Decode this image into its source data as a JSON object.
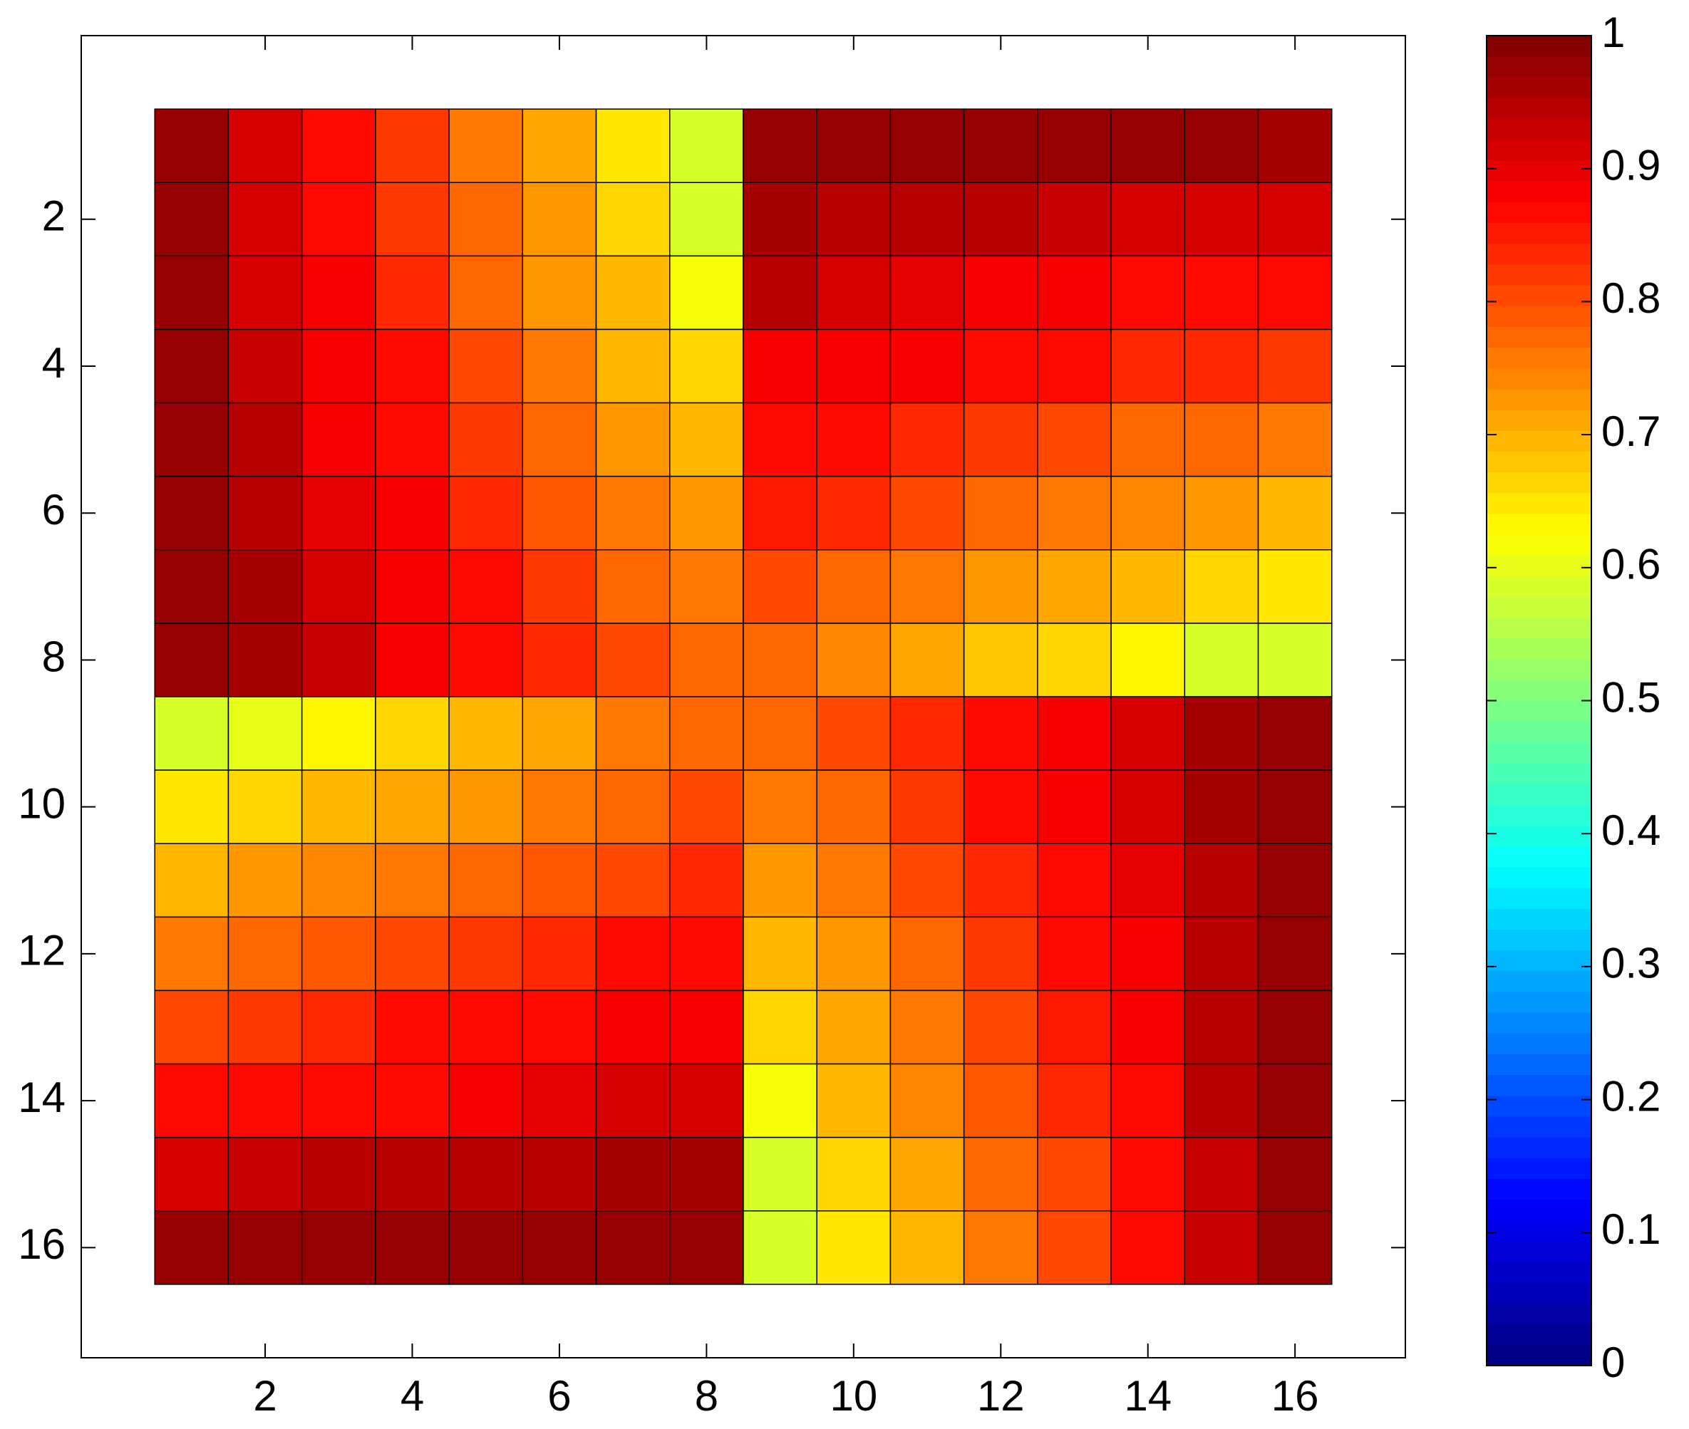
{
  "chart_data": {
    "type": "heatmap",
    "colormap": "jet",
    "clim": [
      0,
      1
    ],
    "cell_edges": true,
    "y_reversed": true,
    "x": [
      1,
      2,
      3,
      4,
      5,
      6,
      7,
      8,
      9,
      10,
      11,
      12,
      13,
      14,
      15,
      16
    ],
    "y": [
      1,
      2,
      3,
      4,
      5,
      6,
      7,
      8,
      9,
      10,
      11,
      12,
      13,
      14,
      15,
      16
    ],
    "values": [
      [
        0.98,
        0.92,
        0.87,
        0.82,
        0.76,
        0.71,
        0.65,
        0.58,
        0.98,
        0.98,
        0.98,
        0.98,
        0.98,
        0.98,
        0.97,
        0.96
      ],
      [
        0.98,
        0.92,
        0.87,
        0.82,
        0.77,
        0.72,
        0.67,
        0.59,
        0.96,
        0.95,
        0.95,
        0.94,
        0.93,
        0.92,
        0.92,
        0.91
      ],
      [
        0.98,
        0.92,
        0.88,
        0.84,
        0.78,
        0.73,
        0.69,
        0.62,
        0.94,
        0.92,
        0.9,
        0.89,
        0.88,
        0.87,
        0.87,
        0.86
      ],
      [
        0.98,
        0.93,
        0.88,
        0.86,
        0.8,
        0.75,
        0.7,
        0.66,
        0.88,
        0.88,
        0.88,
        0.87,
        0.86,
        0.84,
        0.83,
        0.82
      ],
      [
        0.98,
        0.94,
        0.89,
        0.87,
        0.82,
        0.77,
        0.73,
        0.69,
        0.87,
        0.86,
        0.84,
        0.82,
        0.8,
        0.78,
        0.77,
        0.76
      ],
      [
        0.98,
        0.95,
        0.9,
        0.88,
        0.84,
        0.79,
        0.76,
        0.72,
        0.85,
        0.83,
        0.8,
        0.78,
        0.76,
        0.74,
        0.72,
        0.7
      ],
      [
        0.98,
        0.96,
        0.92,
        0.88,
        0.86,
        0.82,
        0.78,
        0.75,
        0.81,
        0.78,
        0.76,
        0.73,
        0.71,
        0.69,
        0.67,
        0.65
      ],
      [
        0.98,
        0.96,
        0.93,
        0.88,
        0.87,
        0.84,
        0.81,
        0.78,
        0.78,
        0.74,
        0.71,
        0.68,
        0.66,
        0.63,
        0.59,
        0.58
      ],
      [
        0.58,
        0.6,
        0.63,
        0.67,
        0.69,
        0.71,
        0.75,
        0.78,
        0.78,
        0.81,
        0.84,
        0.87,
        0.88,
        0.92,
        0.96,
        0.98
      ],
      [
        0.65,
        0.67,
        0.69,
        0.71,
        0.72,
        0.75,
        0.78,
        0.81,
        0.75,
        0.78,
        0.82,
        0.86,
        0.88,
        0.92,
        0.96,
        0.98
      ],
      [
        0.7,
        0.72,
        0.74,
        0.76,
        0.77,
        0.79,
        0.81,
        0.84,
        0.72,
        0.76,
        0.8,
        0.84,
        0.87,
        0.9,
        0.95,
        0.98
      ],
      [
        0.76,
        0.77,
        0.79,
        0.8,
        0.82,
        0.84,
        0.86,
        0.87,
        0.69,
        0.73,
        0.78,
        0.82,
        0.86,
        0.89,
        0.95,
        0.98
      ],
      [
        0.81,
        0.82,
        0.84,
        0.86,
        0.87,
        0.87,
        0.88,
        0.88,
        0.66,
        0.71,
        0.76,
        0.8,
        0.85,
        0.88,
        0.94,
        0.98
      ],
      [
        0.87,
        0.87,
        0.87,
        0.87,
        0.88,
        0.9,
        0.91,
        0.92,
        0.62,
        0.69,
        0.74,
        0.79,
        0.83,
        0.87,
        0.94,
        0.98
      ],
      [
        0.92,
        0.93,
        0.94,
        0.94,
        0.95,
        0.95,
        0.96,
        0.96,
        0.58,
        0.66,
        0.71,
        0.77,
        0.81,
        0.86,
        0.93,
        0.98
      ],
      [
        0.98,
        0.98,
        0.98,
        0.98,
        0.98,
        0.98,
        0.98,
        0.98,
        0.58,
        0.65,
        0.7,
        0.75,
        0.8,
        0.86,
        0.93,
        0.98
      ]
    ],
    "xlim": [
      -0.5,
      17.5
    ],
    "ylim": [
      -0.5,
      17.5
    ],
    "xticks": [
      2,
      4,
      6,
      8,
      10,
      12,
      14,
      16
    ],
    "yticks": [
      2,
      4,
      6,
      8,
      10,
      12,
      14,
      16
    ],
    "colorbar_ticks": [
      0,
      0.1,
      0.2,
      0.3,
      0.4,
      0.5,
      0.6,
      0.7,
      0.8,
      0.9,
      1
    ]
  }
}
